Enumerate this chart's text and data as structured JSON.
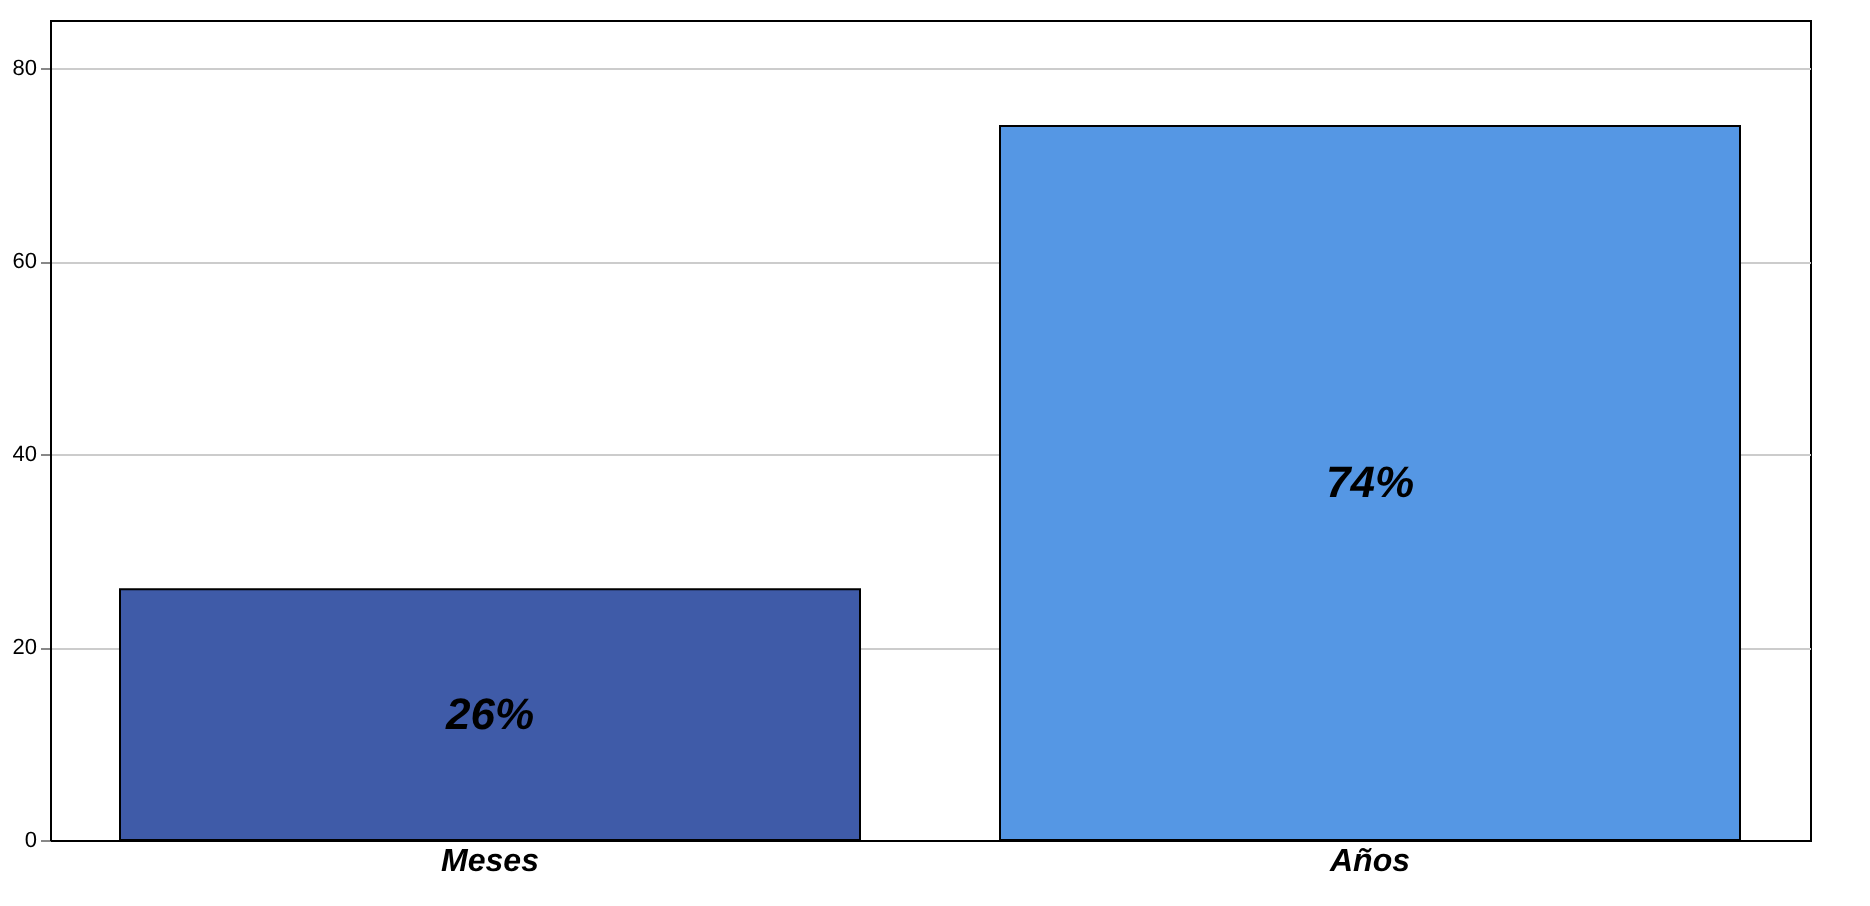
{
  "chart_data": {
    "type": "bar",
    "categories": [
      "Meses",
      "Años"
    ],
    "values": [
      26,
      74
    ],
    "colors": [
      "#3f5ba8",
      "#5597e4"
    ],
    "value_labels": [
      "26%",
      "74%"
    ],
    "ylim": [
      0,
      85
    ],
    "yticks": [
      0,
      20,
      40,
      60,
      80
    ],
    "grid": "y"
  }
}
